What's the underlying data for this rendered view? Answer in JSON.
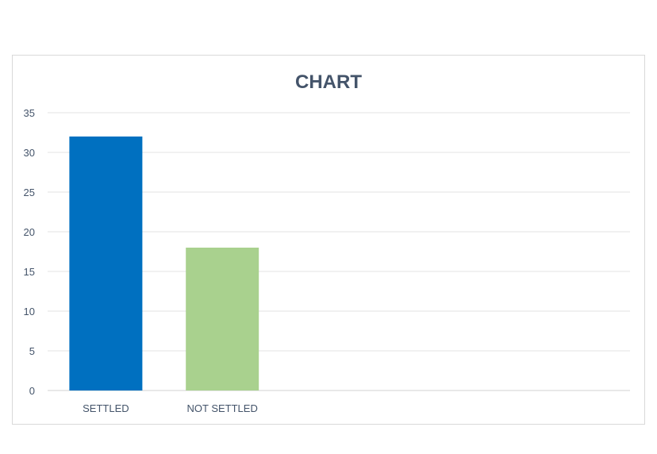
{
  "chart_data": {
    "type": "bar",
    "title": "CHART",
    "categories": [
      "SETTLED",
      "NOT SETTLED",
      "",
      "",
      ""
    ],
    "values": [
      32,
      18,
      null,
      null,
      null
    ],
    "colors": [
      "#0070c0",
      "#a9d18e"
    ],
    "ylim": [
      0,
      35
    ],
    "yticks": [
      0,
      5,
      10,
      15,
      20,
      25,
      30,
      35
    ],
    "xlabel": "",
    "ylabel": "",
    "grid": true,
    "legend": "none"
  }
}
